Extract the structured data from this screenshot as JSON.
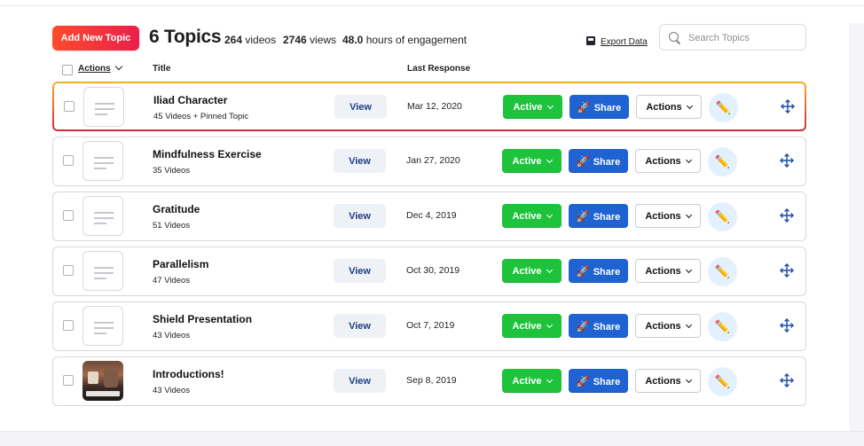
{
  "header": {
    "add_button": "Add New Topic",
    "title": "6 Topics",
    "stats": [
      {
        "value": "264",
        "label": "videos"
      },
      {
        "value": "2746",
        "label": "views"
      },
      {
        "value": "48.0",
        "label": "hours of engagement"
      }
    ],
    "export_label": "Export Data",
    "search_placeholder": "Search Topics",
    "search_value": ""
  },
  "columns": {
    "actions": "Actions",
    "title": "Title",
    "last_response": "Last Response"
  },
  "rows": [
    {
      "title": "Iliad Character",
      "subtitle": "45 Videos + Pinned Topic",
      "view": "View",
      "date": "Mar 12, 2020",
      "status": "Active",
      "share": "Share",
      "actions": "Actions",
      "thumbnail": "placeholder"
    },
    {
      "title": "Mindfulness Exercise",
      "subtitle": "35 Videos",
      "view": "View",
      "date": "Jan 27, 2020",
      "status": "Active",
      "share": "Share",
      "actions": "Actions",
      "thumbnail": "placeholder"
    },
    {
      "title": "Gratitude",
      "subtitle": "51 Videos",
      "view": "View",
      "date": "Dec 4, 2019",
      "status": "Active",
      "share": "Share",
      "actions": "Actions",
      "thumbnail": "placeholder"
    },
    {
      "title": "Parallelism",
      "subtitle": "47 Videos",
      "view": "View",
      "date": "Oct 30, 2019",
      "status": "Active",
      "share": "Share",
      "actions": "Actions",
      "thumbnail": "placeholder"
    },
    {
      "title": "Shield Presentation",
      "subtitle": "43 Videos",
      "view": "View",
      "date": "Oct 7, 2019",
      "status": "Active",
      "share": "Share",
      "actions": "Actions",
      "thumbnail": "placeholder"
    },
    {
      "title": "Introductions!",
      "subtitle": "43 Videos",
      "view": "View",
      "date": "Sep 8, 2019",
      "status": "Active",
      "share": "Share",
      "actions": "Actions",
      "thumbnail": "photo"
    }
  ],
  "icons": {
    "share": "rocket-icon",
    "edit": "pencil-icon",
    "reorder": "move-icon",
    "export": "floppy-disk-icon",
    "search": "search-icon"
  },
  "colors": {
    "add_button": "#ff4a2d",
    "active": "#1ec33c",
    "share": "#1f63d3",
    "selected_border_top": "#f0b02b",
    "selected_border_bottom": "#d3283c"
  }
}
